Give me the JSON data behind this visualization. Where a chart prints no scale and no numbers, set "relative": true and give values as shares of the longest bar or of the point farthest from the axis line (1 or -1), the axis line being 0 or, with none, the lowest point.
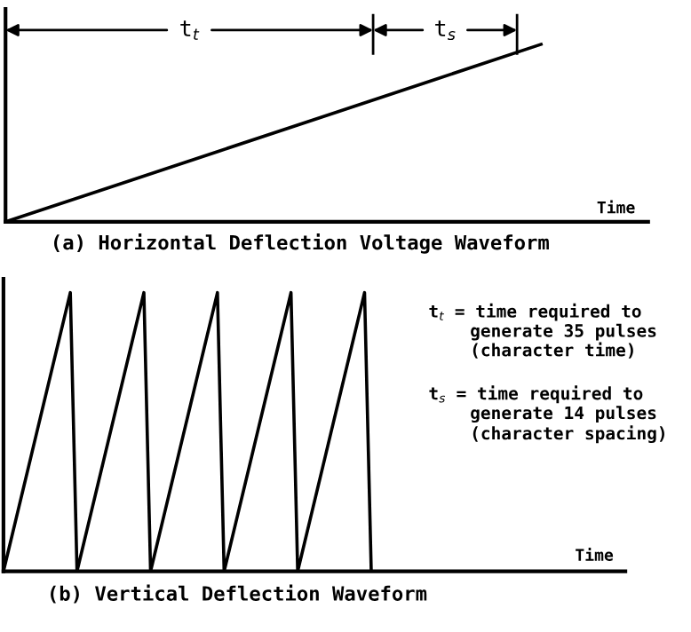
{
  "chart_data": [
    {
      "type": "line",
      "relative": true,
      "title": "(a) Horizontal Deflection Voltage Waveform",
      "xlabel": "Time",
      "line_style": "solid",
      "categories": [
        null,
        null,
        null,
        null,
        null,
        null,
        null
      ],
      "series": [
        {
          "color": "#000000",
          "values": [
            0,
            0.2,
            0.4,
            0.6,
            0.8,
            1,
            null
          ]
        }
      ],
      "annotations": [
        "t$_{t}$",
        "t$_{s}$"
      ]
    },
    {
      "type": "line",
      "relative": true,
      "title": "(b) Vertical Deflection Waveform",
      "xlabel": "Time",
      "line_style": "solid",
      "categories": [
        null,
        null,
        null,
        null,
        null,
        null,
        null,
        null,
        null,
        null,
        null,
        null,
        null,
        null,
        null,
        null,
        null,
        null,
        null,
        null,
        null,
        null,
        null,
        null,
        null,
        null,
        null,
        null,
        null,
        null,
        null,
        null,
        null,
        null,
        null,
        null,
        null,
        null,
        null,
        null,
        null,
        null,
        null,
        null,
        null,
        null,
        null,
        null,
        null,
        null,
        null,
        null,
        null,
        null,
        null,
        null,
        null,
        null,
        null,
        null,
        null,
        null,
        null,
        null,
        null,
        null,
        null,
        null,
        null,
        null,
        null,
        null,
        null,
        null,
        null,
        null,
        null,
        null,
        null,
        null,
        null,
        null,
        null,
        null,
        null,
        null,
        null,
        null,
        null,
        null,
        null,
        null,
        null,
        null
      ],
      "series": [
        {
          "color": "#000000",
          "values": [
            0,
            0.1,
            0.2,
            0.3,
            0.4,
            0.5,
            0.6,
            0.7,
            0.8,
            0.9,
            1,
            0,
            0.1,
            0.2,
            0.3,
            0.4,
            0.5,
            0.6,
            0.7,
            0.8,
            0.9,
            1,
            0,
            0.1,
            0.2,
            0.3,
            0.4,
            0.5,
            0.6,
            0.7,
            0.8,
            0.9,
            1,
            0,
            0.1,
            0.2,
            0.3,
            0.4,
            0.5,
            0.6,
            0.7,
            0.8,
            0.9,
            1,
            0,
            0.1,
            0.2,
            0.3,
            0.4,
            0.5,
            0.6,
            0.7,
            0.8,
            0.9,
            1,
            0,
            null,
            null,
            null,
            null,
            null,
            null,
            null,
            null,
            null,
            null,
            null,
            null,
            null,
            null,
            null,
            null,
            null,
            null,
            null,
            null,
            null,
            null,
            null,
            null,
            null,
            null,
            null,
            null,
            null,
            null,
            null,
            null,
            null,
            null,
            null,
            null,
            null,
            null
          ]
        }
      ],
      "annotations": [
        "t$_{t}$ = time required to\n    generate 35 pulses\n    (character time)",
        "t$_{s}$ = time required to\n    generate 14 pulses\n    (character spacing)"
      ]
    }
  ]
}
